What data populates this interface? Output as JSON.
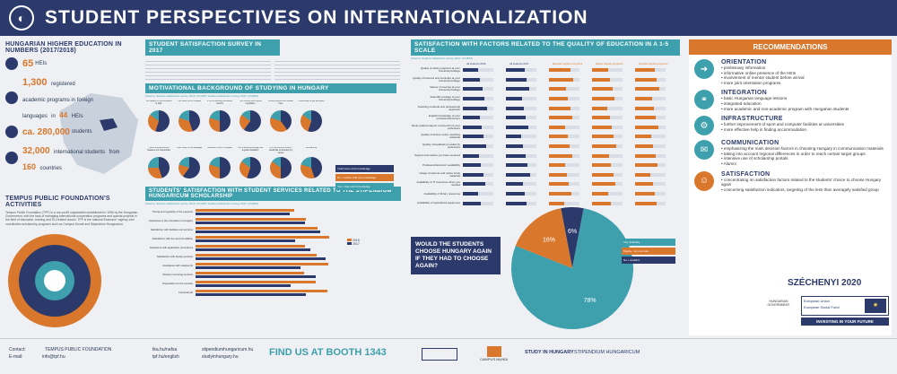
{
  "header": {
    "title": "STUDENT PERSPECTIVES ON INTERNATIONALIZATION"
  },
  "left": {
    "he_title": "HUNGARIAN HIGHER EDUCATION IN NUMBERS (2017/2018)",
    "stats": [
      {
        "num": "65",
        "text": "HEIs"
      },
      {
        "num": "1,300",
        "text": "registered academic programs in foreign languages"
      },
      {
        "num": "44",
        "text": "HEIs"
      },
      {
        "num": "ca. 280,000",
        "text": "students"
      },
      {
        "num": "32,000",
        "text": "international students"
      },
      {
        "num": "160",
        "text": "countries"
      }
    ],
    "tpf_title": "TEMPUS PUBLIC FOUNDATION'S ACTIVITIES",
    "tpf_text": "Tempus Public Foundation (TPF) is a non-profit organization established in 1996 by the Hungarian Government, with the task of managing international cooperation programs and special projects in the field of education, training and EU-related issues. TPF is the national Erasmus+ agency and coordinates scholarship programs such as Campus Mundi and Stipendium Hungaricum."
  },
  "middle": {
    "survey_title": "STUDENT SATISFACTION SURVEY IN 2017",
    "motiv_title": "MOTIVATIONAL BACKGROUND OF STUDYING IN HUNGARY",
    "motiv_source": "(Source: Student satisfaction survey 2016, N=1308; Student satisfaction survey 2017, N=2823)",
    "pie_labels": [
      "The quality of the education is high",
      "The tuition fee is cheaper",
      "It is a financially affordable country",
      "The country has a good reputation",
      "I know people who studied here",
      "It was easy to get accepted",
      "There is a partnership between our universities",
      "I can study in the language",
      "I wanted to live in Hungary",
      "The University/College has a good reputation",
      "It is the country where I would like to develop my career",
      "Scholarship"
    ],
    "legend": [
      "I had some prior knowledge",
      "No, I neither had any knowledge",
      "Yes, I had much knowledge"
    ],
    "services_title": "STUDENTS' SATISFACTION WITH STUDENT SERVICES RELATED TO THE STIPENDIUM HUNGARICUM SCHOLARSHIP",
    "services_source": "(Source: Student satisfaction survey 2016, N=1308; Student satisfaction survey 2017, N=2823)",
    "services_legend": [
      "2016",
      "2017"
    ],
    "services_rows": [
      "Timing and regularity of the payment",
      "Assistance in the orientation in Hungary",
      "Satisfaction with facilities and services",
      "Satisfaction with the accommodation",
      "Assistance with application procedures",
      "Satisfaction with faculty services",
      "Assistance with visa/permit",
      "Student mentoring services",
      "Preparation for the courses",
      "Financial aid"
    ]
  },
  "right": {
    "sat_title": "SATISFACTION WITH FACTORS RELATED TO THE QUALITY OF EDUCATION IN A 1-5 SCALE",
    "sat_source": "(Source: Student satisfaction survey 2017, N=2823)",
    "sat_cols": [
      "All students 2016",
      "All students 2017",
      "Bachelor degree programs",
      "Master degree programs",
      "Doctoral degree programs"
    ],
    "sat_rows": [
      "Quality of study programs at your University/College",
      "Quality of lectures and seminars at your University/College",
      "Variety of courses at your University/College",
      "Scientific prestige of your University/College",
      "Teaching methods and professional approach",
      "English knowledge of your professors/lecturers",
      "Study-related support received from your professors",
      "Quality of lecture notes, teaching materials",
      "Quality of feedback provided by professors",
      "Support and advice you have received",
      "Professors/lecturers' availability",
      "Usage of internet and online study materials",
      "Availability of IT resources when you needed",
      "Availability of library resources",
      "Availability of specialized equipment"
    ],
    "q_title": "WOULD THE STUDENTS CHOOSE HUNGARY AGAIN IF THEY HAD TO CHOOSE AGAIN?",
    "q_legend": [
      "Yes, definitely",
      "Maybe, I am not sure",
      "No, I wouldn't"
    ]
  },
  "chart_data": {
    "type": "pie",
    "title": "WOULD THE STUDENTS CHOOSE HUNGARY AGAIN IF THEY HAD TO CHOOSE AGAIN?",
    "categories": [
      "Yes, definitely",
      "Maybe, I am not sure",
      "No, I wouldn't"
    ],
    "values": [
      78,
      16,
      6
    ],
    "labels": [
      "78%",
      "16%",
      "6%"
    ]
  },
  "recommendations": {
    "title": "RECOMMENDATIONS",
    "items": [
      {
        "title": "ORIENTATION",
        "lines": [
          "preliminary information",
          "informative online presence of the HEIs",
          "involvement of mentor student before arrival",
          "more joint orientation programs"
        ]
      },
      {
        "title": "INTEGRATION",
        "lines": [
          "basic Hungarian language lessons",
          "integrated education",
          "more academic and non-academic program with Hungarian students"
        ]
      },
      {
        "title": "INFRASTRUCTURE",
        "lines": [
          "further improvement of sport and computer facilities at universities",
          "more effective help in finding accommodation"
        ]
      },
      {
        "title": "COMMUNICATION",
        "lines": [
          "emphasizing the main decision factors in choosing Hungary in communication materials",
          "taking into account regional differences in order to reach certain target groups",
          "intensive use of scholarship portals",
          "Alumni"
        ]
      },
      {
        "title": "SATISFACTION",
        "lines": [
          "concentrating on satisfaction factors related to the students' choice to choose Hungary again",
          "concerning satisfaction indicators, targeting of the less than averagely satisfied group"
        ]
      }
    ],
    "szechenyi": "SZÉCHENYI 2020",
    "eu_text": [
      "European Union",
      "European Social Fund"
    ],
    "invest": "INVESTING IN YOUR FUTURE",
    "hungarian_gov": "HUNGARIAN GOVERNMENT"
  },
  "footer": {
    "contact_label": "Contact:",
    "email_label": "E-mail:",
    "org": "TEMPUS PUBLIC FOUNDATION",
    "email": "info@tpf.hu",
    "web1": "tka.hu/nafsa",
    "web2": "tpf.hu/english",
    "web3": "stipendiumhungaricum.hu",
    "web4": "studyinhungary.hu",
    "booth": "FIND US AT BOOTH 1343",
    "logos": [
      "CAMPUS MUNDI",
      "STUDY IN HUNGARY",
      "STIPENDIUM HUNGARICUM"
    ]
  },
  "colors": {
    "navy": "#2b3a6b",
    "teal": "#3ea0ad",
    "orange": "#d9772c"
  }
}
